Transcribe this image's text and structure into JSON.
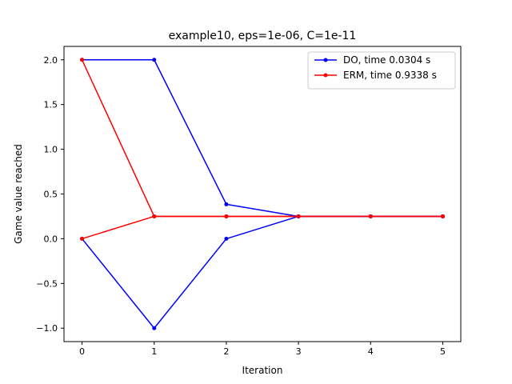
{
  "chart_data": {
    "type": "line",
    "title": "example10, eps=1e-06, C=1e-11",
    "xlabel": "Iteration",
    "ylabel": "Game value reached",
    "xlim": [
      -0.25,
      5.25
    ],
    "ylim": [
      -1.15,
      2.15
    ],
    "x_ticks": [
      0,
      1,
      2,
      3,
      4,
      5
    ],
    "x_tick_labels": [
      "0",
      "1",
      "2",
      "3",
      "4",
      "5"
    ],
    "y_ticks": [
      -1.0,
      -0.5,
      0.0,
      0.5,
      1.0,
      1.5,
      2.0
    ],
    "y_tick_labels": [
      "−1.0",
      "−0.5",
      "0.0",
      "0.5",
      "1.0",
      "1.5",
      "2.0"
    ],
    "grid": false,
    "legend_position": "top-right",
    "series": [
      {
        "name": "DO, time 0.0304 s",
        "color": "#0000ff",
        "line": "upper",
        "x": [
          0,
          1,
          2,
          3,
          4,
          5
        ],
        "values": [
          2.0,
          2.0,
          0.385,
          0.25,
          0.25,
          0.25
        ]
      },
      {
        "name": "DO, time 0.0304 s",
        "color": "#0000ff",
        "line": "lower",
        "x": [
          0,
          1,
          2,
          3,
          4,
          5
        ],
        "values": [
          0.0,
          -1.0,
          0.0,
          0.25,
          0.25,
          0.25
        ]
      },
      {
        "name": "ERM, time 0.9338 s",
        "color": "#ff0000",
        "line": "upper",
        "x": [
          0,
          1,
          2,
          3,
          4,
          5
        ],
        "values": [
          2.0,
          0.25,
          0.25,
          0.25,
          0.25,
          0.25
        ]
      },
      {
        "name": "ERM, time 0.9338 s",
        "color": "#ff0000",
        "line": "lower",
        "x": [
          0,
          1,
          2,
          3,
          4,
          5
        ],
        "values": [
          0.0,
          0.25,
          0.25,
          0.25,
          0.25,
          0.25
        ]
      }
    ],
    "legend": [
      {
        "label": "DO, time 0.0304 s",
        "color": "#0000ff"
      },
      {
        "label": "ERM, time 0.9338 s",
        "color": "#ff0000"
      }
    ]
  }
}
